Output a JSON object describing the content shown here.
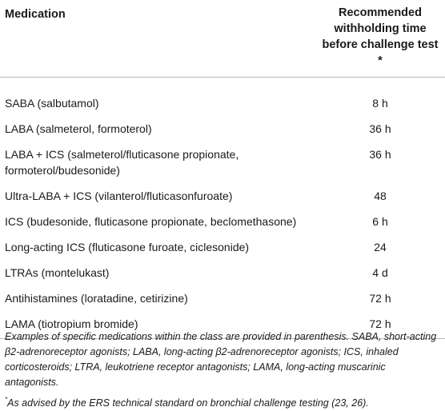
{
  "table": {
    "headers": {
      "medication": "Medication",
      "withholding": "Recommended withholding time before challenge test *"
    },
    "rows": [
      {
        "medication": "SABA (salbutamol)",
        "time": "8 h"
      },
      {
        "medication": "LABA (salmeterol, formoterol)",
        "time": "36 h"
      },
      {
        "medication": "LABA + ICS (salmeterol/fluticasone propionate, formoterol/budesonide)",
        "time": "36 h"
      },
      {
        "medication": "Ultra-LABA + ICS (vilanterol/fluticasonfuroate)",
        "time": "48"
      },
      {
        "medication": "ICS (budesonide, fluticasone propionate, beclomethasone)",
        "time": "6 h"
      },
      {
        "medication": "Long-acting ICS (fluticasone furoate, ciclesonide)",
        "time": "24"
      },
      {
        "medication": "LTRAs (montelukast)",
        "time": "4 d"
      },
      {
        "medication": "Antihistamines (loratadine, cetirizine)",
        "time": "72 h"
      },
      {
        "medication": "LAMA (tiotropium bromide)",
        "time": "72 h"
      }
    ]
  },
  "footnotes": {
    "note": "Examples of specific medications within the class are provided in parenthesis. SABA, short-acting β2-adrenoreceptor agonists; LABA, long-acting β2-adrenoreceptor agonists; ICS, inhaled corticosteroids; LTRA, leukotriene receptor antagonists; LAMA, long-acting muscarinic antagonists.",
    "asterisk_marker": "*",
    "asterisk_text": "As advised by the ERS technical standard on bronchial challenge testing (23, 26)."
  }
}
